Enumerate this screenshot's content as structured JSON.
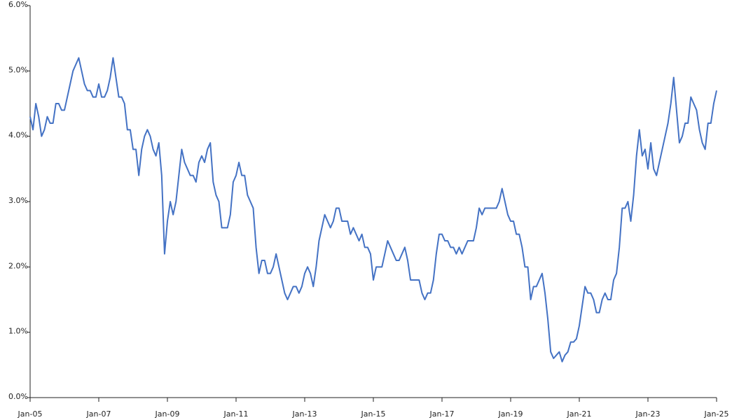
{
  "chart_data": {
    "type": "line",
    "color": "#4472c4",
    "x": [
      "Jan-05",
      "Feb-05",
      "Mar-05",
      "Apr-05",
      "May-05",
      "Jun-05",
      "Jul-05",
      "Aug-05",
      "Sep-05",
      "Oct-05",
      "Nov-05",
      "Dec-05",
      "Jan-06",
      "Feb-06",
      "Mar-06",
      "Apr-06",
      "May-06",
      "Jun-06",
      "Jul-06",
      "Aug-06",
      "Sep-06",
      "Oct-06",
      "Nov-06",
      "Dec-06",
      "Jan-07",
      "Feb-07",
      "Mar-07",
      "Apr-07",
      "May-07",
      "Jun-07",
      "Jul-07",
      "Aug-07",
      "Sep-07",
      "Oct-07",
      "Nov-07",
      "Dec-07",
      "Jan-08",
      "Feb-08",
      "Mar-08",
      "Apr-08",
      "May-08",
      "Jun-08",
      "Jul-08",
      "Aug-08",
      "Sep-08",
      "Oct-08",
      "Nov-08",
      "Dec-08",
      "Jan-09",
      "Feb-09",
      "Mar-09",
      "Apr-09",
      "May-09",
      "Jun-09",
      "Jul-09",
      "Aug-09",
      "Sep-09",
      "Oct-09",
      "Nov-09",
      "Dec-09",
      "Jan-10",
      "Feb-10",
      "Mar-10",
      "Apr-10",
      "May-10",
      "Jun-10",
      "Jul-10",
      "Aug-10",
      "Sep-10",
      "Oct-10",
      "Nov-10",
      "Dec-10",
      "Jan-11",
      "Feb-11",
      "Mar-11",
      "Apr-11",
      "May-11",
      "Jun-11",
      "Jul-11",
      "Aug-11",
      "Sep-11",
      "Oct-11",
      "Nov-11",
      "Dec-11",
      "Jan-12",
      "Feb-12",
      "Mar-12",
      "Apr-12",
      "May-12",
      "Jun-12",
      "Jul-12",
      "Aug-12",
      "Sep-12",
      "Oct-12",
      "Nov-12",
      "Dec-12",
      "Jan-13",
      "Feb-13",
      "Mar-13",
      "Apr-13",
      "May-13",
      "Jun-13",
      "Jul-13",
      "Aug-13",
      "Sep-13",
      "Oct-13",
      "Nov-13",
      "Dec-13",
      "Jan-14",
      "Feb-14",
      "Mar-14",
      "Apr-14",
      "May-14",
      "Jun-14",
      "Jul-14",
      "Aug-14",
      "Sep-14",
      "Oct-14",
      "Nov-14",
      "Dec-14",
      "Jan-15",
      "Feb-15",
      "Mar-15",
      "Apr-15",
      "May-15",
      "Jun-15",
      "Jul-15",
      "Aug-15",
      "Sep-15",
      "Oct-15",
      "Nov-15",
      "Dec-15",
      "Jan-16",
      "Feb-16",
      "Mar-16",
      "Apr-16",
      "May-16",
      "Jun-16",
      "Jul-16",
      "Aug-16",
      "Sep-16",
      "Oct-16",
      "Nov-16",
      "Dec-16",
      "Jan-17",
      "Feb-17",
      "Mar-17",
      "Apr-17",
      "May-17",
      "Jun-17",
      "Jul-17",
      "Aug-17",
      "Sep-17",
      "Oct-17",
      "Nov-17",
      "Dec-17",
      "Jan-18",
      "Feb-18",
      "Mar-18",
      "Apr-18",
      "May-18",
      "Jun-18",
      "Jul-18",
      "Aug-18",
      "Sep-18",
      "Oct-18",
      "Nov-18",
      "Dec-18",
      "Jan-19",
      "Feb-19",
      "Mar-19",
      "Apr-19",
      "May-19",
      "Jun-19",
      "Jul-19",
      "Aug-19",
      "Sep-19",
      "Oct-19",
      "Nov-19",
      "Dec-19",
      "Jan-20",
      "Feb-20",
      "Mar-20",
      "Apr-20",
      "May-20",
      "Jun-20",
      "Jul-20",
      "Aug-20",
      "Sep-20",
      "Oct-20",
      "Nov-20",
      "Dec-20",
      "Jan-21",
      "Feb-21",
      "Mar-21",
      "Apr-21",
      "May-21",
      "Jun-21",
      "Jul-21",
      "Aug-21",
      "Sep-21",
      "Oct-21",
      "Nov-21",
      "Dec-21",
      "Jan-22",
      "Feb-22",
      "Mar-22",
      "Apr-22",
      "May-22",
      "Jun-22",
      "Jul-22",
      "Aug-22",
      "Sep-22",
      "Oct-22",
      "Nov-22",
      "Dec-22",
      "Jan-23",
      "Feb-23",
      "Mar-23",
      "Apr-23",
      "May-23",
      "Jun-23",
      "Jul-23",
      "Aug-23",
      "Sep-23",
      "Oct-23",
      "Nov-23",
      "Dec-23",
      "Jan-24",
      "Feb-24",
      "Mar-24",
      "Apr-24",
      "May-24",
      "Jun-24",
      "Jul-24",
      "Aug-24",
      "Sep-24",
      "Oct-24",
      "Nov-24",
      "Dec-24",
      "Jan-25"
    ],
    "values": [
      4.3,
      4.1,
      4.5,
      4.3,
      4.0,
      4.1,
      4.3,
      4.2,
      4.2,
      4.5,
      4.5,
      4.4,
      4.4,
      4.6,
      4.8,
      5.0,
      5.1,
      5.2,
      5.0,
      4.8,
      4.7,
      4.7,
      4.6,
      4.6,
      4.8,
      4.6,
      4.6,
      4.7,
      4.9,
      5.2,
      4.9,
      4.6,
      4.6,
      4.5,
      4.1,
      4.1,
      3.8,
      3.8,
      3.4,
      3.8,
      4.0,
      4.1,
      4.0,
      3.8,
      3.7,
      3.9,
      3.4,
      2.2,
      2.7,
      3.0,
      2.8,
      3.0,
      3.4,
      3.8,
      3.6,
      3.5,
      3.4,
      3.4,
      3.3,
      3.6,
      3.7,
      3.6,
      3.8,
      3.9,
      3.3,
      3.1,
      3.0,
      2.6,
      2.6,
      2.6,
      2.8,
      3.3,
      3.4,
      3.6,
      3.4,
      3.4,
      3.1,
      3.0,
      2.9,
      2.3,
      1.9,
      2.1,
      2.1,
      1.9,
      1.9,
      2.0,
      2.2,
      2.0,
      1.8,
      1.6,
      1.5,
      1.6,
      1.7,
      1.7,
      1.6,
      1.7,
      1.9,
      2.0,
      1.9,
      1.7,
      2.0,
      2.4,
      2.6,
      2.8,
      2.7,
      2.6,
      2.7,
      2.9,
      2.9,
      2.7,
      2.7,
      2.7,
      2.5,
      2.6,
      2.5,
      2.4,
      2.5,
      2.3,
      2.3,
      2.2,
      1.8,
      2.0,
      2.0,
      2.0,
      2.2,
      2.4,
      2.3,
      2.2,
      2.1,
      2.1,
      2.2,
      2.3,
      2.1,
      1.8,
      1.8,
      1.8,
      1.8,
      1.6,
      1.5,
      1.6,
      1.6,
      1.8,
      2.2,
      2.5,
      2.5,
      2.4,
      2.4,
      2.3,
      2.3,
      2.2,
      2.3,
      2.2,
      2.3,
      2.4,
      2.4,
      2.4,
      2.6,
      2.9,
      2.8,
      2.9,
      2.9,
      2.9,
      2.9,
      2.9,
      3.0,
      3.2,
      3.0,
      2.8,
      2.7,
      2.7,
      2.5,
      2.5,
      2.3,
      2.0,
      2.0,
      1.5,
      1.7,
      1.7,
      1.8,
      1.9,
      1.6,
      1.2,
      0.7,
      0.6,
      0.65,
      0.7,
      0.55,
      0.65,
      0.7,
      0.85,
      0.85,
      0.9,
      1.1,
      1.4,
      1.7,
      1.6,
      1.6,
      1.5,
      1.3,
      1.3,
      1.5,
      1.6,
      1.5,
      1.5,
      1.8,
      1.9,
      2.3,
      2.9,
      2.9,
      3.0,
      2.7,
      3.1,
      3.7,
      4.1,
      3.7,
      3.8,
      3.5,
      3.9,
      3.5,
      3.4,
      3.6,
      3.8,
      4.0,
      4.2,
      4.5,
      4.9,
      4.4,
      3.9,
      4.0,
      4.2,
      4.2,
      4.6,
      4.5,
      4.4,
      4.1,
      3.9,
      3.8,
      4.2,
      4.2,
      4.5,
      4.7
    ],
    "xlim": [
      "Jan-05",
      "Jan-25"
    ],
    "xticks": [
      "Jan-05",
      "Jan-07",
      "Jan-09",
      "Jan-11",
      "Jan-13",
      "Jan-15",
      "Jan-17",
      "Jan-19",
      "Jan-21",
      "Jan-23",
      "Jan-25"
    ],
    "ylim": [
      0,
      6
    ],
    "yticks": [
      {
        "value": 0,
        "label": "0.0%"
      },
      {
        "value": 1,
        "label": "1.0%"
      },
      {
        "value": 2,
        "label": "2.0%"
      },
      {
        "value": 3,
        "label": "3.0%"
      },
      {
        "value": 4,
        "label": "4.0%"
      },
      {
        "value": 5,
        "label": "5.0%"
      },
      {
        "value": 6,
        "label": "6.0%"
      }
    ],
    "grid": false
  }
}
